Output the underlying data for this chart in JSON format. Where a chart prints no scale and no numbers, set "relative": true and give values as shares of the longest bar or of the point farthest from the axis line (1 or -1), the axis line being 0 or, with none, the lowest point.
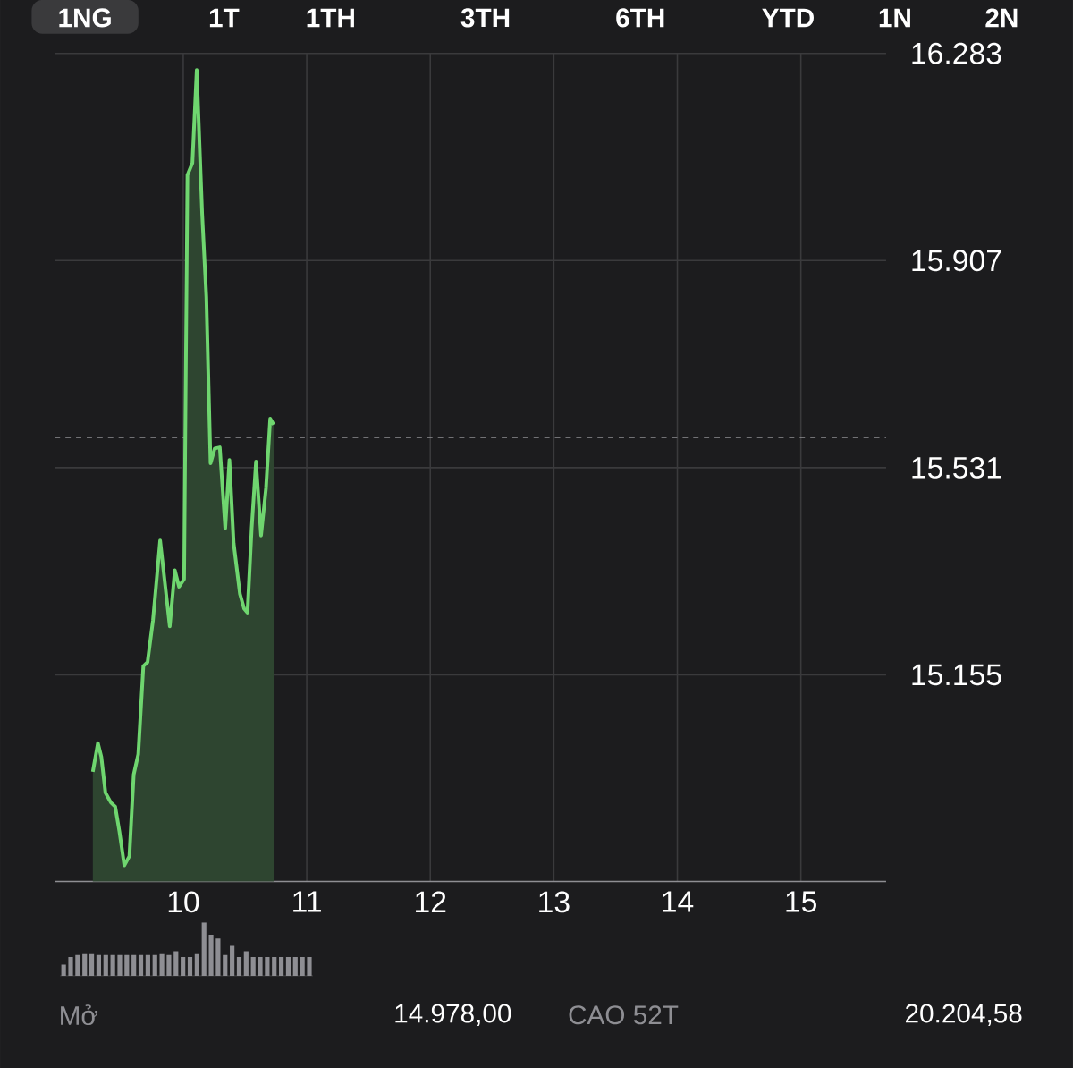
{
  "chart_data": [
    {
      "type": "area",
      "x": [
        9.268,
        9.309,
        9.337,
        9.37,
        9.415,
        9.449,
        9.483,
        9.523,
        9.564,
        9.599,
        9.636,
        9.677,
        9.711,
        9.755,
        9.813,
        9.864,
        9.891,
        9.932,
        9.966,
        10.007,
        10.034,
        10.074,
        10.109,
        10.153,
        10.187,
        10.221,
        10.255,
        10.296,
        10.34,
        10.374,
        10.408,
        10.459,
        10.493,
        10.52,
        10.554,
        10.589,
        10.63,
        10.67,
        10.704,
        10.732
      ],
      "series": [
        {
          "color": "#6fd66f",
          "values": [
            14.979,
            15.031,
            15.006,
            14.941,
            14.923,
            14.916,
            14.871,
            14.809,
            14.826,
            14.974,
            15.011,
            15.171,
            15.178,
            15.254,
            15.399,
            15.297,
            15.243,
            15.345,
            15.315,
            15.329,
            16.062,
            16.084,
            16.253,
            15.992,
            15.841,
            15.539,
            15.566,
            15.568,
            15.421,
            15.545,
            15.394,
            15.302,
            15.275,
            15.268,
            15.421,
            15.542,
            15.408,
            15.494,
            15.62,
            15.609
          ]
        }
      ],
      "xlim": [
        8.96,
        15.69
      ],
      "xticks": [
        10,
        11,
        12,
        13,
        14,
        15
      ],
      "ylim": [
        14.78,
        16.283
      ],
      "yticks": [
        15.155,
        15.531,
        15.907,
        16.283
      ],
      "grid": true,
      "ref_lines": [
        {
          "axis": "y",
          "value": 15.586,
          "line_style": "dashed",
          "color": "#8e8e93"
        }
      ],
      "annotations": [
        "1NG",
        "1T",
        "1TH",
        "3TH",
        "6TH",
        "YTD",
        "1N",
        "2N",
        "Mở",
        "14.978,00",
        "CAO 52T",
        "20.204,58"
      ]
    },
    {
      "type": "bar",
      "relative": true,
      "categories": [
        null,
        null,
        null,
        null,
        null,
        null,
        null,
        null,
        null,
        null,
        null,
        null,
        null,
        null,
        null,
        null,
        null,
        null,
        null,
        null,
        null,
        null,
        null,
        null,
        null,
        null,
        null,
        null,
        null,
        null,
        null,
        null,
        null,
        null,
        null,
        null
      ],
      "values": [
        0.21,
        0.35,
        0.39,
        0.42,
        0.42,
        0.39,
        0.39,
        0.39,
        0.39,
        0.39,
        0.39,
        0.39,
        0.39,
        0.39,
        0.42,
        0.39,
        0.46,
        0.35,
        0.35,
        0.42,
        1,
        0.77,
        0.7,
        0.39,
        0.56,
        0.35,
        0.46,
        0.35,
        0.35,
        0.35,
        0.35,
        0.35,
        0.35,
        0.35,
        0.35,
        0.35
      ],
      "color": "#8e8e93"
    }
  ]
}
